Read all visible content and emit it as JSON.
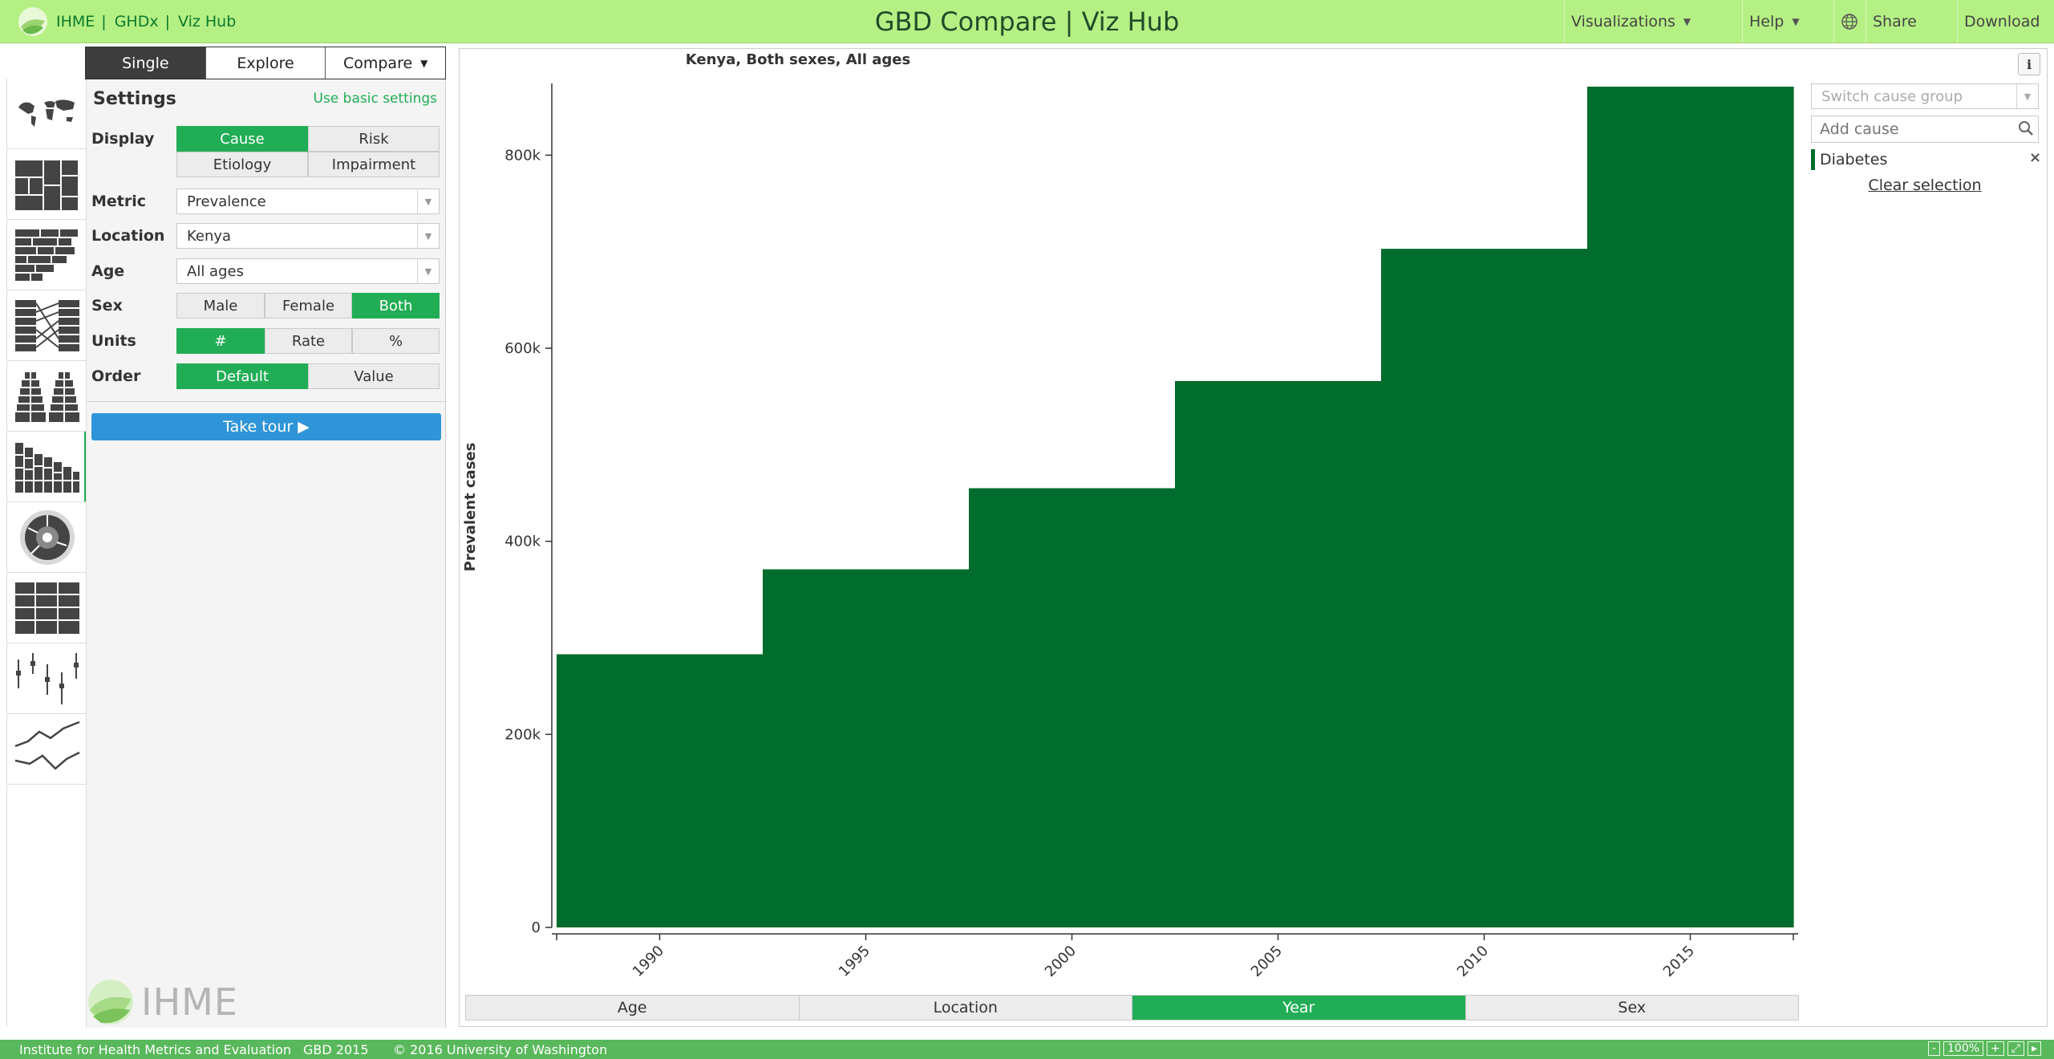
{
  "header": {
    "brand_links": [
      "IHME",
      "GHDx",
      "Viz Hub"
    ],
    "title": "GBD Compare | Viz Hub",
    "menu": {
      "visualizations": "Visualizations",
      "help": "Help",
      "share": "Share",
      "download": "Download"
    }
  },
  "mode_tabs": [
    "Single",
    "Explore",
    "Compare"
  ],
  "settings": {
    "title": "Settings",
    "basic_link": "Use basic settings",
    "display": {
      "label": "Display",
      "options": [
        "Cause",
        "Risk",
        "Etiology",
        "Impairment"
      ],
      "selected": "Cause"
    },
    "metric": {
      "label": "Metric",
      "value": "Prevalence"
    },
    "location": {
      "label": "Location",
      "value": "Kenya"
    },
    "age": {
      "label": "Age",
      "value": "All ages"
    },
    "sex": {
      "label": "Sex",
      "options": [
        "Male",
        "Female",
        "Both"
      ],
      "selected": "Both"
    },
    "units": {
      "label": "Units",
      "options": [
        "#",
        "Rate",
        "%"
      ],
      "selected": "#"
    },
    "order": {
      "label": "Order",
      "options": [
        "Default",
        "Value"
      ],
      "selected": "Default"
    },
    "tour_button": "Take tour ▶"
  },
  "footer_logo_text": "IHME",
  "chart": {
    "info_label": "i",
    "dimension_tabs": [
      "Age",
      "Location",
      "Year",
      "Sex"
    ],
    "selected_dimension": "Year"
  },
  "chart_data": {
    "type": "area",
    "title": "Kenya, Both sexes, All ages",
    "ylabel": "Prevalent cases",
    "xlabel": "",
    "x": [
      1990,
      1995,
      2000,
      2005,
      2010,
      2015
    ],
    "values": [
      283000,
      371000,
      455000,
      566000,
      703000,
      871000
    ],
    "x_range": [
      1987.5,
      2017.5
    ],
    "ylim": [
      0,
      871000
    ],
    "y_ticks": [
      0,
      200000,
      400000,
      600000,
      800000
    ],
    "y_tick_labels": [
      "0",
      "200k",
      "400k",
      "600k",
      "800k"
    ],
    "x_tick_labels": [
      "1990",
      "1995",
      "2000",
      "2005",
      "2010",
      "2015"
    ],
    "series_color": "#006c2d",
    "grid": false,
    "series": [
      {
        "name": "Diabetes",
        "values": [
          283000,
          371000,
          455000,
          566000,
          703000,
          871000
        ]
      }
    ]
  },
  "right_panel": {
    "cause_group_placeholder": "Switch cause group",
    "add_cause_placeholder": "Add cause",
    "selected_cause": "Diabetes",
    "clear_selection": "Clear selection"
  },
  "footer": {
    "org": "Institute for Health Metrics and Evaluation",
    "edition": "GBD 2015",
    "copyright": "© 2016 University of Washington",
    "zoom_minus": "-",
    "zoom": "100%",
    "zoom_plus": "+"
  },
  "colors": {
    "header_bg": "#b5f084",
    "accent": "#21ad55",
    "chart_fill": "#006c2d",
    "tour_button": "#2f95d8",
    "footer_bg": "#59b85b"
  }
}
